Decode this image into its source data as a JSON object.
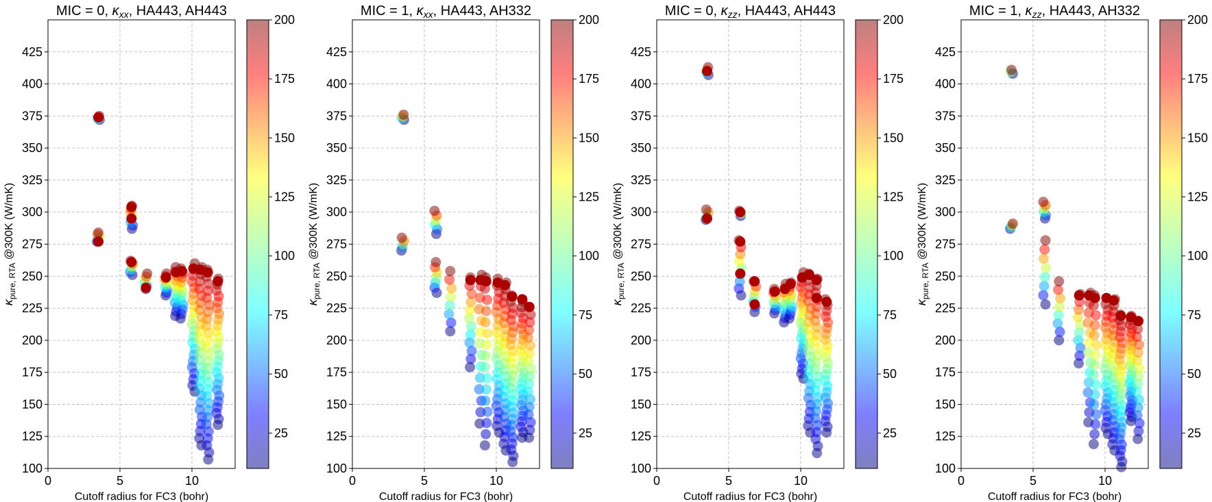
{
  "figure": {
    "colormap": "jet",
    "point_alpha": 0.5,
    "colors": {
      "background": "#ffffff",
      "grid": "#b0b0b0",
      "axes": "#000000",
      "highlight_point": "#aa0000"
    }
  },
  "chart_data": [
    {
      "type": "scatter",
      "title_prefix": "MIC = 0, ",
      "title_kappa": "κ",
      "title_sub": "xx",
      "title_suffix": ", HA443, AH443",
      "xlabel": "Cutoff radius for FC3 (bohr)",
      "ylabel_kappa": "κ",
      "ylabel_sub": "pure, RTA",
      "ylabel_suffix": " @300K (W/mK)",
      "xlim": [
        0,
        13
      ],
      "ylim": [
        100,
        450
      ],
      "xticks": [
        "0",
        "5",
        "10"
      ],
      "yticks": [
        "100",
        "125",
        "150",
        "175",
        "200",
        "225",
        "250",
        "275",
        "300",
        "325",
        "350",
        "375",
        "400",
        "425"
      ],
      "colorbar": {
        "range": [
          10,
          200
        ],
        "ticks": [
          "25",
          "50",
          "75",
          "100",
          "125",
          "150",
          "175",
          "200"
        ]
      },
      "grid": true,
      "clusters": [
        {
          "x": 3.5,
          "ymin": 277,
          "ymax": 284,
          "n": 6
        },
        {
          "x": 3.5,
          "ymin": 372,
          "ymax": 375,
          "n": 4
        },
        {
          "x": 5.8,
          "ymin": 251,
          "ymax": 262,
          "n": 6
        },
        {
          "x": 5.8,
          "ymin": 287,
          "ymax": 305,
          "n": 8
        },
        {
          "x": 6.8,
          "ymin": 240,
          "ymax": 252,
          "n": 6
        },
        {
          "x": 8.2,
          "ymin": 235,
          "ymax": 252,
          "n": 9
        },
        {
          "x": 8.9,
          "ymin": 219,
          "ymax": 257,
          "n": 12
        },
        {
          "x": 9.3,
          "ymin": 217,
          "ymax": 256,
          "n": 12
        },
        {
          "x": 10.1,
          "ymin": 160,
          "ymax": 260,
          "n": 22
        },
        {
          "x": 10.6,
          "ymin": 118,
          "ymax": 257,
          "n": 26
        },
        {
          "x": 11.1,
          "ymin": 107,
          "ymax": 255,
          "n": 28
        },
        {
          "x": 11.8,
          "ymin": 134,
          "ymax": 248,
          "n": 26
        }
      ],
      "highlights": [
        {
          "x": 3.5,
          "y": 374
        },
        {
          "x": 3.5,
          "y": 277
        },
        {
          "x": 5.8,
          "y": 304
        },
        {
          "x": 5.8,
          "y": 295
        },
        {
          "x": 5.8,
          "y": 261
        },
        {
          "x": 6.8,
          "y": 241
        },
        {
          "x": 8.2,
          "y": 249
        },
        {
          "x": 8.9,
          "y": 253
        },
        {
          "x": 9.3,
          "y": 254
        },
        {
          "x": 10.1,
          "y": 256
        },
        {
          "x": 10.6,
          "y": 255
        },
        {
          "x": 11.1,
          "y": 253
        },
        {
          "x": 11.8,
          "y": 246
        }
      ]
    },
    {
      "type": "scatter",
      "title_prefix": "MIC = 1, ",
      "title_kappa": "κ",
      "title_sub": "xx",
      "title_suffix": ", HA443, AH332",
      "xlabel": "Cutoff radius for FC3 (bohr)",
      "ylabel_kappa": "κ",
      "ylabel_sub": "pure, RTA",
      "ylabel_suffix": " @300K (W/mK)",
      "xlim": [
        0,
        13
      ],
      "ylim": [
        100,
        450
      ],
      "xticks": [
        "0",
        "5",
        "10"
      ],
      "yticks": [
        "100",
        "125",
        "150",
        "175",
        "200",
        "225",
        "250",
        "275",
        "300",
        "325",
        "350",
        "375",
        "400",
        "425"
      ],
      "colorbar": {
        "range": [
          10,
          200
        ],
        "ticks": [
          "25",
          "50",
          "75",
          "100",
          "125",
          "150",
          "175",
          "200"
        ]
      },
      "grid": true,
      "clusters": [
        {
          "x": 3.5,
          "ymin": 270,
          "ymax": 280,
          "n": 5
        },
        {
          "x": 3.5,
          "ymin": 372,
          "ymax": 376,
          "n": 4
        },
        {
          "x": 5.8,
          "ymin": 237,
          "ymax": 261,
          "n": 7
        },
        {
          "x": 5.8,
          "ymin": 283,
          "ymax": 301,
          "n": 6
        },
        {
          "x": 6.8,
          "ymin": 207,
          "ymax": 254,
          "n": 8
        },
        {
          "x": 8.2,
          "ymin": 179,
          "ymax": 249,
          "n": 12
        },
        {
          "x": 8.9,
          "ymin": 135,
          "ymax": 251,
          "n": 14
        },
        {
          "x": 9.3,
          "ymin": 118,
          "ymax": 249,
          "n": 16
        },
        {
          "x": 10.1,
          "ymin": 128,
          "ymax": 248,
          "n": 24
        },
        {
          "x": 10.6,
          "ymin": 114,
          "ymax": 245,
          "n": 26
        },
        {
          "x": 11.1,
          "ymin": 105,
          "ymax": 235,
          "n": 28
        },
        {
          "x": 11.8,
          "ymin": 124,
          "ymax": 230,
          "n": 26
        },
        {
          "x": 12.3,
          "ymin": 124,
          "ymax": 226,
          "n": 18
        }
      ],
      "highlights": [
        {
          "x": 8.2,
          "y": 247
        },
        {
          "x": 8.9,
          "y": 247
        },
        {
          "x": 9.3,
          "y": 246
        },
        {
          "x": 10.1,
          "y": 245
        },
        {
          "x": 10.6,
          "y": 243
        },
        {
          "x": 11.1,
          "y": 234
        },
        {
          "x": 11.8,
          "y": 232
        },
        {
          "x": 12.3,
          "y": 226
        }
      ]
    },
    {
      "type": "scatter",
      "title_prefix": "MIC = 0, ",
      "title_kappa": "κ",
      "title_sub": "zz",
      "title_suffix": ", HA443, AH443",
      "xlabel": "Cutoff radius for FC3 (bohr)",
      "ylabel_kappa": "κ",
      "ylabel_sub": "pure, RTA",
      "ylabel_suffix": " @300K (W/mK)",
      "xlim": [
        0,
        13
      ],
      "ylim": [
        100,
        450
      ],
      "xticks": [
        "0",
        "5",
        "10"
      ],
      "yticks": [
        "100",
        "125",
        "150",
        "175",
        "200",
        "225",
        "250",
        "275",
        "300",
        "325",
        "350",
        "375",
        "400",
        "425"
      ],
      "colorbar": {
        "range": [
          10,
          200
        ],
        "ticks": [
          "25",
          "50",
          "75",
          "100",
          "125",
          "150",
          "175",
          "200"
        ]
      },
      "grid": true,
      "clusters": [
        {
          "x": 3.5,
          "ymin": 294,
          "ymax": 302,
          "n": 5
        },
        {
          "x": 3.5,
          "ymin": 407,
          "ymax": 413,
          "n": 4
        },
        {
          "x": 5.8,
          "ymin": 235,
          "ymax": 278,
          "n": 9
        },
        {
          "x": 5.8,
          "ymin": 297,
          "ymax": 301,
          "n": 3
        },
        {
          "x": 6.8,
          "ymin": 222,
          "ymax": 246,
          "n": 7
        },
        {
          "x": 8.2,
          "ymin": 221,
          "ymax": 240,
          "n": 8
        },
        {
          "x": 8.9,
          "ymin": 214,
          "ymax": 244,
          "n": 10
        },
        {
          "x": 9.3,
          "ymin": 217,
          "ymax": 245,
          "n": 10
        },
        {
          "x": 10.1,
          "ymin": 170,
          "ymax": 253,
          "n": 22
        },
        {
          "x": 10.6,
          "ymin": 128,
          "ymax": 252,
          "n": 24
        },
        {
          "x": 11.1,
          "ymin": 112,
          "ymax": 248,
          "n": 26
        },
        {
          "x": 11.8,
          "ymin": 128,
          "ymax": 232,
          "n": 24
        }
      ],
      "highlights": [
        {
          "x": 3.5,
          "y": 410
        },
        {
          "x": 3.5,
          "y": 295
        },
        {
          "x": 5.8,
          "y": 300
        },
        {
          "x": 5.8,
          "y": 277
        },
        {
          "x": 5.8,
          "y": 252
        },
        {
          "x": 6.8,
          "y": 246
        },
        {
          "x": 6.8,
          "y": 228
        },
        {
          "x": 8.2,
          "y": 238
        },
        {
          "x": 8.9,
          "y": 240
        },
        {
          "x": 9.3,
          "y": 244
        },
        {
          "x": 10.1,
          "y": 249
        },
        {
          "x": 10.6,
          "y": 251
        },
        {
          "x": 11.1,
          "y": 247
        },
        {
          "x": 11.1,
          "y": 233
        },
        {
          "x": 11.8,
          "y": 230
        }
      ]
    },
    {
      "type": "scatter",
      "title_prefix": "MIC = 1, ",
      "title_kappa": "κ",
      "title_sub": "zz",
      "title_suffix": ", HA443, AH332",
      "xlabel": "Cutoff radius for FC3 (bohr)",
      "ylabel_kappa": "κ",
      "ylabel_sub": "pure, RTA",
      "ylabel_suffix": " @300K (W/mK)",
      "xlim": [
        0,
        13
      ],
      "ylim": [
        100,
        450
      ],
      "xticks": [
        "0",
        "5",
        "10"
      ],
      "yticks": [
        "100",
        "125",
        "150",
        "175",
        "200",
        "225",
        "250",
        "275",
        "300",
        "325",
        "350",
        "375",
        "400",
        "425"
      ],
      "colorbar": {
        "range": [
          10,
          200
        ],
        "ticks": [
          "25",
          "50",
          "75",
          "100",
          "125",
          "150",
          "175",
          "200"
        ]
      },
      "grid": true,
      "clusters": [
        {
          "x": 3.5,
          "ymin": 287,
          "ymax": 291,
          "n": 4
        },
        {
          "x": 3.5,
          "ymin": 408,
          "ymax": 411,
          "n": 3
        },
        {
          "x": 5.8,
          "ymin": 228,
          "ymax": 278,
          "n": 8
        },
        {
          "x": 5.8,
          "ymin": 295,
          "ymax": 308,
          "n": 6
        },
        {
          "x": 6.8,
          "ymin": 200,
          "ymax": 246,
          "n": 8
        },
        {
          "x": 8.2,
          "ymin": 182,
          "ymax": 236,
          "n": 10
        },
        {
          "x": 8.9,
          "ymin": 136,
          "ymax": 237,
          "n": 14
        },
        {
          "x": 9.3,
          "ymin": 119,
          "ymax": 235,
          "n": 16
        },
        {
          "x": 10.1,
          "ymin": 127,
          "ymax": 233,
          "n": 24
        },
        {
          "x": 10.6,
          "ymin": 114,
          "ymax": 232,
          "n": 26
        },
        {
          "x": 11.1,
          "ymin": 101,
          "ymax": 220,
          "n": 28
        },
        {
          "x": 11.8,
          "ymin": 137,
          "ymax": 219,
          "n": 26
        },
        {
          "x": 12.3,
          "ymin": 123,
          "ymax": 215,
          "n": 16
        }
      ],
      "highlights": [
        {
          "x": 8.2,
          "y": 235
        },
        {
          "x": 8.9,
          "y": 235
        },
        {
          "x": 9.3,
          "y": 233
        },
        {
          "x": 10.1,
          "y": 233
        },
        {
          "x": 10.6,
          "y": 231
        },
        {
          "x": 11.1,
          "y": 219
        },
        {
          "x": 11.8,
          "y": 218
        },
        {
          "x": 12.3,
          "y": 215
        }
      ]
    }
  ]
}
